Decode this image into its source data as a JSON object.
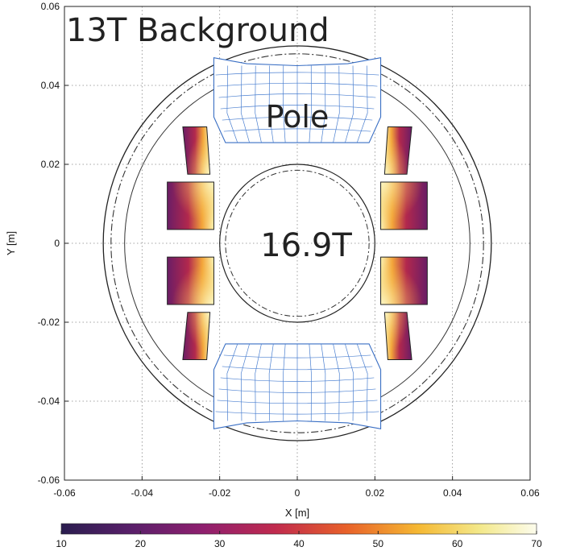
{
  "chart_data": {
    "type": "heatmap",
    "title": "13T Background",
    "xlabel": "X [m]",
    "ylabel": "Y [m]",
    "xlim": [
      -0.06,
      0.06
    ],
    "ylim": [
      -0.06,
      0.06
    ],
    "grid": true,
    "x_ticks": [
      "-0.06",
      "-0.04",
      "-0.02",
      "0",
      "0.02",
      "0.04",
      "0.06"
    ],
    "y_ticks": [
      "0.06",
      "0.04",
      "0.02",
      "0",
      "-0.02",
      "-0.04",
      "-0.06"
    ],
    "annotations": {
      "pole": "Pole",
      "center_field": "16.9T"
    },
    "colorbar": {
      "ticks": [
        "10",
        "20",
        "30",
        "40",
        "50",
        "60",
        "70"
      ],
      "range": [
        10,
        70
      ],
      "colormap": [
        "#2a1d4f",
        "#5a1f6a",
        "#8f1f6e",
        "#c02a4e",
        "#e8612a",
        "#f5b833",
        "#f3e88a",
        "#fcfcec"
      ]
    },
    "circles_radius": [
      0.05,
      0.048,
      0.0445,
      0.02,
      0.0185
    ],
    "coil_blocks": [
      {
        "name": "upper-left-outer",
        "x": [
          -0.0295,
          -0.0225
        ],
        "y": [
          0.0175,
          0.0295
        ]
      },
      {
        "name": "upper-left-inner",
        "x": [
          -0.0335,
          -0.0215
        ],
        "y": [
          0.0035,
          0.0155
        ]
      },
      {
        "name": "lower-left-inner",
        "x": [
          -0.0335,
          -0.0215
        ],
        "y": [
          -0.0155,
          -0.0035
        ]
      },
      {
        "name": "lower-left-outer",
        "x": [
          -0.0295,
          -0.0225
        ],
        "y": [
          -0.0295,
          -0.0175
        ]
      },
      {
        "name": "upper-right-outer",
        "x": [
          0.0225,
          0.0295
        ],
        "y": [
          0.0175,
          0.0295
        ]
      },
      {
        "name": "upper-right-inner",
        "x": [
          0.0215,
          0.0335
        ],
        "y": [
          0.0035,
          0.0155
        ]
      },
      {
        "name": "lower-right-inner",
        "x": [
          0.0215,
          0.0335
        ],
        "y": [
          -0.0155,
          -0.0035
        ]
      },
      {
        "name": "lower-right-outer",
        "x": [
          0.0225,
          0.0295
        ],
        "y": [
          -0.0295,
          -0.0175
        ]
      }
    ]
  }
}
